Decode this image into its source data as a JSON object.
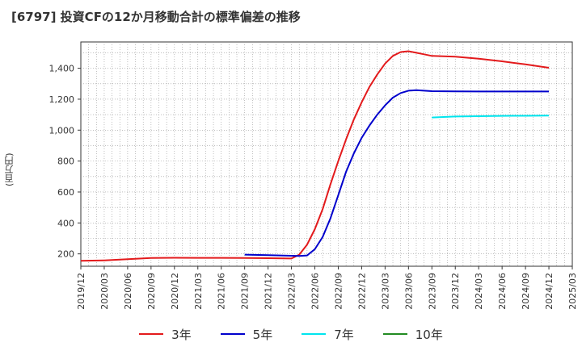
{
  "chart_data": {
    "type": "line",
    "title": "[6797]  投資CFの12か月移動合計の標準偏差の推移",
    "ylabel": "(百万円)",
    "ylim": [
      120,
      1570
    ],
    "yticks": [
      200,
      400,
      600,
      800,
      1000,
      1200,
      1400
    ],
    "ytick_labels": [
      "200",
      "400",
      "600",
      "800",
      "1,000",
      "1,200",
      "1,400"
    ],
    "xticks": [
      "2019/12",
      "2020/03",
      "2020/06",
      "2020/09",
      "2020/12",
      "2021/03",
      "2021/06",
      "2021/09",
      "2021/12",
      "2022/03",
      "2022/06",
      "2022/09",
      "2022/12",
      "2023/03",
      "2023/06",
      "2023/09",
      "2023/12",
      "2024/03",
      "2024/06",
      "2024/09",
      "2024/12",
      "2025/03"
    ],
    "grid": true,
    "legend_position": "bottom",
    "series": [
      {
        "name": "3年",
        "color": "#e31a1c",
        "points": [
          [
            "2019/12",
            155
          ],
          [
            "2020/03",
            158
          ],
          [
            "2020/06",
            166
          ],
          [
            "2020/09",
            173
          ],
          [
            "2020/12",
            175
          ],
          [
            "2021/03",
            174
          ],
          [
            "2021/06",
            174
          ],
          [
            "2021/09",
            173
          ],
          [
            "2021/12",
            172
          ],
          [
            "2022/03",
            170
          ],
          [
            "2022/04",
            195
          ],
          [
            "2022/05",
            260
          ],
          [
            "2022/06",
            360
          ],
          [
            "2022/07",
            490
          ],
          [
            "2022/08",
            650
          ],
          [
            "2022/09",
            800
          ],
          [
            "2022/10",
            940
          ],
          [
            "2022/11",
            1070
          ],
          [
            "2022/12",
            1180
          ],
          [
            "2023/01",
            1280
          ],
          [
            "2023/02",
            1360
          ],
          [
            "2023/03",
            1430
          ],
          [
            "2023/04",
            1480
          ],
          [
            "2023/05",
            1505
          ],
          [
            "2023/06",
            1510
          ],
          [
            "2023/07",
            1500
          ],
          [
            "2023/08",
            1490
          ],
          [
            "2023/09",
            1480
          ],
          [
            "2023/12",
            1475
          ],
          [
            "2024/03",
            1462
          ],
          [
            "2024/06",
            1445
          ],
          [
            "2024/09",
            1425
          ],
          [
            "2024/12",
            1403
          ]
        ]
      },
      {
        "name": "5年",
        "color": "#0000cc",
        "points": [
          [
            "2021/09",
            195
          ],
          [
            "2021/12",
            192
          ],
          [
            "2022/03",
            188
          ],
          [
            "2022/04",
            186
          ],
          [
            "2022/05",
            190
          ],
          [
            "2022/06",
            230
          ],
          [
            "2022/07",
            310
          ],
          [
            "2022/08",
            430
          ],
          [
            "2022/09",
            580
          ],
          [
            "2022/10",
            730
          ],
          [
            "2022/11",
            850
          ],
          [
            "2022/12",
            950
          ],
          [
            "2023/01",
            1030
          ],
          [
            "2023/02",
            1100
          ],
          [
            "2023/03",
            1160
          ],
          [
            "2023/04",
            1210
          ],
          [
            "2023/05",
            1240
          ],
          [
            "2023/06",
            1255
          ],
          [
            "2023/07",
            1258
          ],
          [
            "2023/08",
            1255
          ],
          [
            "2023/09",
            1252
          ],
          [
            "2023/12",
            1251
          ],
          [
            "2024/03",
            1250
          ],
          [
            "2024/06",
            1250
          ],
          [
            "2024/09",
            1250
          ],
          [
            "2024/12",
            1250
          ]
        ]
      },
      {
        "name": "7年",
        "color": "#00e5ee",
        "points": [
          [
            "2023/09",
            1082
          ],
          [
            "2023/12",
            1088
          ],
          [
            "2024/03",
            1090
          ],
          [
            "2024/06",
            1092
          ],
          [
            "2024/09",
            1093
          ],
          [
            "2024/12",
            1094
          ]
        ]
      },
      {
        "name": "10年",
        "color": "#228b22",
        "points": []
      }
    ]
  }
}
